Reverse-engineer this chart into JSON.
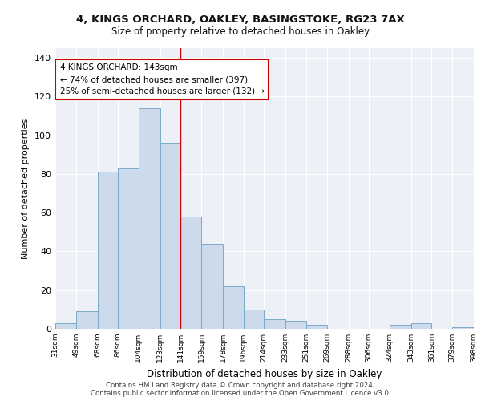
{
  "title1": "4, KINGS ORCHARD, OAKLEY, BASINGSTOKE, RG23 7AX",
  "title2": "Size of property relative to detached houses in Oakley",
  "xlabel": "Distribution of detached houses by size in Oakley",
  "ylabel": "Number of detached properties",
  "bar_color": "#ccdaec",
  "bar_edge_color": "#7aaac8",
  "bins": [
    31,
    49,
    68,
    86,
    104,
    123,
    141,
    159,
    178,
    196,
    214,
    233,
    251,
    269,
    288,
    306,
    324,
    343,
    361,
    379,
    398
  ],
  "counts": [
    3,
    9,
    81,
    83,
    114,
    96,
    58,
    44,
    22,
    10,
    5,
    4,
    2,
    0,
    0,
    0,
    2,
    3,
    0,
    1
  ],
  "tick_labels": [
    "31sqm",
    "49sqm",
    "68sqm",
    "86sqm",
    "104sqm",
    "123sqm",
    "141sqm",
    "159sqm",
    "178sqm",
    "196sqm",
    "214sqm",
    "233sqm",
    "251sqm",
    "269sqm",
    "288sqm",
    "306sqm",
    "324sqm",
    "343sqm",
    "361sqm",
    "379sqm",
    "398sqm"
  ],
  "ylim": [
    0,
    145
  ],
  "yticks": [
    0,
    20,
    40,
    60,
    80,
    100,
    120,
    140
  ],
  "vline_x": 141,
  "vline_color": "#cc0000",
  "annotation_line1": "4 KINGS ORCHARD: 143sqm",
  "annotation_line2": "← 74% of detached houses are smaller (397)",
  "annotation_line3": "25% of semi-detached houses are larger (132) →",
  "annotation_box_color": "#cc0000",
  "footer1": "Contains HM Land Registry data © Crown copyright and database right 2024.",
  "footer2": "Contains public sector information licensed under the Open Government Licence v3.0.",
  "background_color": "#edf1f7"
}
